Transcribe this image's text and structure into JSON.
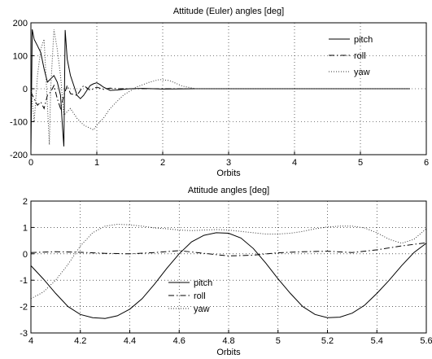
{
  "chart_data": [
    {
      "type": "line",
      "title": "Attitude (Euler) angles [deg]",
      "xlabel": "Orbits",
      "ylabel": "",
      "xlim": [
        0,
        6
      ],
      "ylim": [
        -200,
        200
      ],
      "xticks": [
        "0",
        "1",
        "2",
        "3",
        "4",
        "5",
        "6"
      ],
      "yticks": [
        "-200",
        "-100",
        "0",
        "100",
        "200"
      ],
      "grid": true,
      "legend_position": "top-right",
      "series": [
        {
          "name": "pitch",
          "style": "solid",
          "x": [
            0,
            0.02,
            0.05,
            0.1,
            0.15,
            0.2,
            0.25,
            0.3,
            0.35,
            0.4,
            0.45,
            0.48,
            0.5,
            0.52,
            0.55,
            0.6,
            0.65,
            0.7,
            0.75,
            0.8,
            0.85,
            0.9,
            0.95,
            1.0,
            1.05,
            1.1,
            1.2,
            1.3,
            1.4,
            1.5,
            1.7,
            2.0,
            2.5,
            3.0,
            4.0,
            5.0,
            5.75
          ],
          "y": [
            -190,
            180,
            150,
            130,
            110,
            60,
            20,
            30,
            40,
            20,
            -20,
            -120,
            -175,
            178,
            90,
            40,
            10,
            -20,
            -30,
            -20,
            -5,
            10,
            15,
            18,
            12,
            5,
            -5,
            -4,
            -2,
            0,
            1,
            -1,
            0,
            0,
            0,
            0,
            0
          ]
        },
        {
          "name": "roll",
          "style": "dashdot",
          "x": [
            0,
            0.05,
            0.1,
            0.15,
            0.2,
            0.25,
            0.3,
            0.35,
            0.4,
            0.45,
            0.5,
            0.55,
            0.6,
            0.7,
            0.8,
            0.9,
            1.0,
            1.1,
            1.2,
            1.3,
            1.5,
            2.0,
            3.0,
            4.0,
            5.0,
            5.75
          ],
          "y": [
            -10,
            -30,
            -50,
            -40,
            -60,
            -20,
            -10,
            10,
            -30,
            -60,
            -20,
            10,
            -15,
            -20,
            10,
            -5,
            5,
            -2,
            2,
            0,
            0,
            0,
            0,
            0,
            0,
            0
          ]
        },
        {
          "name": "yaw",
          "style": "dotted",
          "x": [
            0,
            0.05,
            0.1,
            0.15,
            0.2,
            0.25,
            0.28,
            0.3,
            0.35,
            0.4,
            0.45,
            0.5,
            0.6,
            0.7,
            0.8,
            0.9,
            0.95,
            1.0,
            1.1,
            1.2,
            1.4,
            1.6,
            1.8,
            1.95,
            2.1,
            2.3,
            2.5,
            2.8,
            3.2,
            4.0,
            5.0,
            5.75
          ],
          "y": [
            0,
            -100,
            40,
            120,
            150,
            -50,
            -170,
            0,
            180,
            120,
            40,
            -80,
            -60,
            -90,
            -110,
            -120,
            -125,
            -110,
            -90,
            -60,
            -20,
            5,
            20,
            28,
            25,
            8,
            0,
            0,
            0,
            0,
            0,
            0
          ]
        }
      ]
    },
    {
      "type": "line",
      "title": "Attitude angles [deg]",
      "xlabel": "Orbits",
      "ylabel": "",
      "xlim": [
        4,
        5.6
      ],
      "ylim": [
        -3,
        2
      ],
      "xticks": [
        "4",
        "4.2",
        "4.4",
        "4.6",
        "4.8",
        "5",
        "5.2",
        "5.4",
        "5.6"
      ],
      "yticks": [
        "-3",
        "-2",
        "-1",
        "0",
        "1",
        "2"
      ],
      "grid": true,
      "legend_position": "bottom-center",
      "series": [
        {
          "name": "pitch",
          "style": "solid",
          "x": [
            4.0,
            4.05,
            4.1,
            4.15,
            4.2,
            4.25,
            4.3,
            4.35,
            4.4,
            4.45,
            4.5,
            4.55,
            4.6,
            4.65,
            4.7,
            4.75,
            4.8,
            4.85,
            4.9,
            4.95,
            5.0,
            5.05,
            5.1,
            5.15,
            5.2,
            5.25,
            5.3,
            5.35,
            5.4,
            5.45,
            5.5,
            5.55,
            5.6
          ],
          "y": [
            -0.45,
            -0.95,
            -1.5,
            -2.0,
            -2.3,
            -2.42,
            -2.45,
            -2.35,
            -2.1,
            -1.7,
            -1.15,
            -0.55,
            0.0,
            0.45,
            0.7,
            0.8,
            0.78,
            0.6,
            0.2,
            -0.35,
            -0.95,
            -1.5,
            -2.0,
            -2.3,
            -2.42,
            -2.4,
            -2.25,
            -1.95,
            -1.5,
            -1.0,
            -0.45,
            0.05,
            0.4
          ]
        },
        {
          "name": "roll",
          "style": "dashdot",
          "x": [
            4.0,
            4.1,
            4.2,
            4.3,
            4.4,
            4.5,
            4.6,
            4.7,
            4.8,
            4.9,
            5.0,
            5.1,
            5.2,
            5.3,
            5.4,
            5.5,
            5.6
          ],
          "y": [
            0.05,
            0.08,
            0.06,
            0.02,
            0.0,
            0.05,
            0.12,
            0.02,
            -0.08,
            -0.05,
            0.04,
            0.08,
            0.1,
            0.05,
            0.15,
            0.3,
            0.42
          ]
        },
        {
          "name": "yaw",
          "style": "dotted",
          "x": [
            4.0,
            4.05,
            4.1,
            4.15,
            4.2,
            4.25,
            4.3,
            4.35,
            4.4,
            4.45,
            4.5,
            4.55,
            4.6,
            4.65,
            4.7,
            4.75,
            4.8,
            4.85,
            4.9,
            4.95,
            5.0,
            5.05,
            5.1,
            5.15,
            5.2,
            5.25,
            5.3,
            5.35,
            5.4,
            5.45,
            5.5,
            5.55,
            5.6
          ],
          "y": [
            -1.7,
            -1.45,
            -1.0,
            -0.4,
            0.3,
            0.8,
            1.05,
            1.12,
            1.1,
            1.05,
            0.98,
            0.95,
            0.9,
            0.88,
            0.9,
            0.92,
            0.9,
            0.85,
            0.8,
            0.75,
            0.75,
            0.78,
            0.85,
            0.95,
            1.02,
            1.05,
            1.05,
            0.98,
            0.8,
            0.55,
            0.4,
            0.55,
            0.95
          ]
        }
      ]
    }
  ]
}
